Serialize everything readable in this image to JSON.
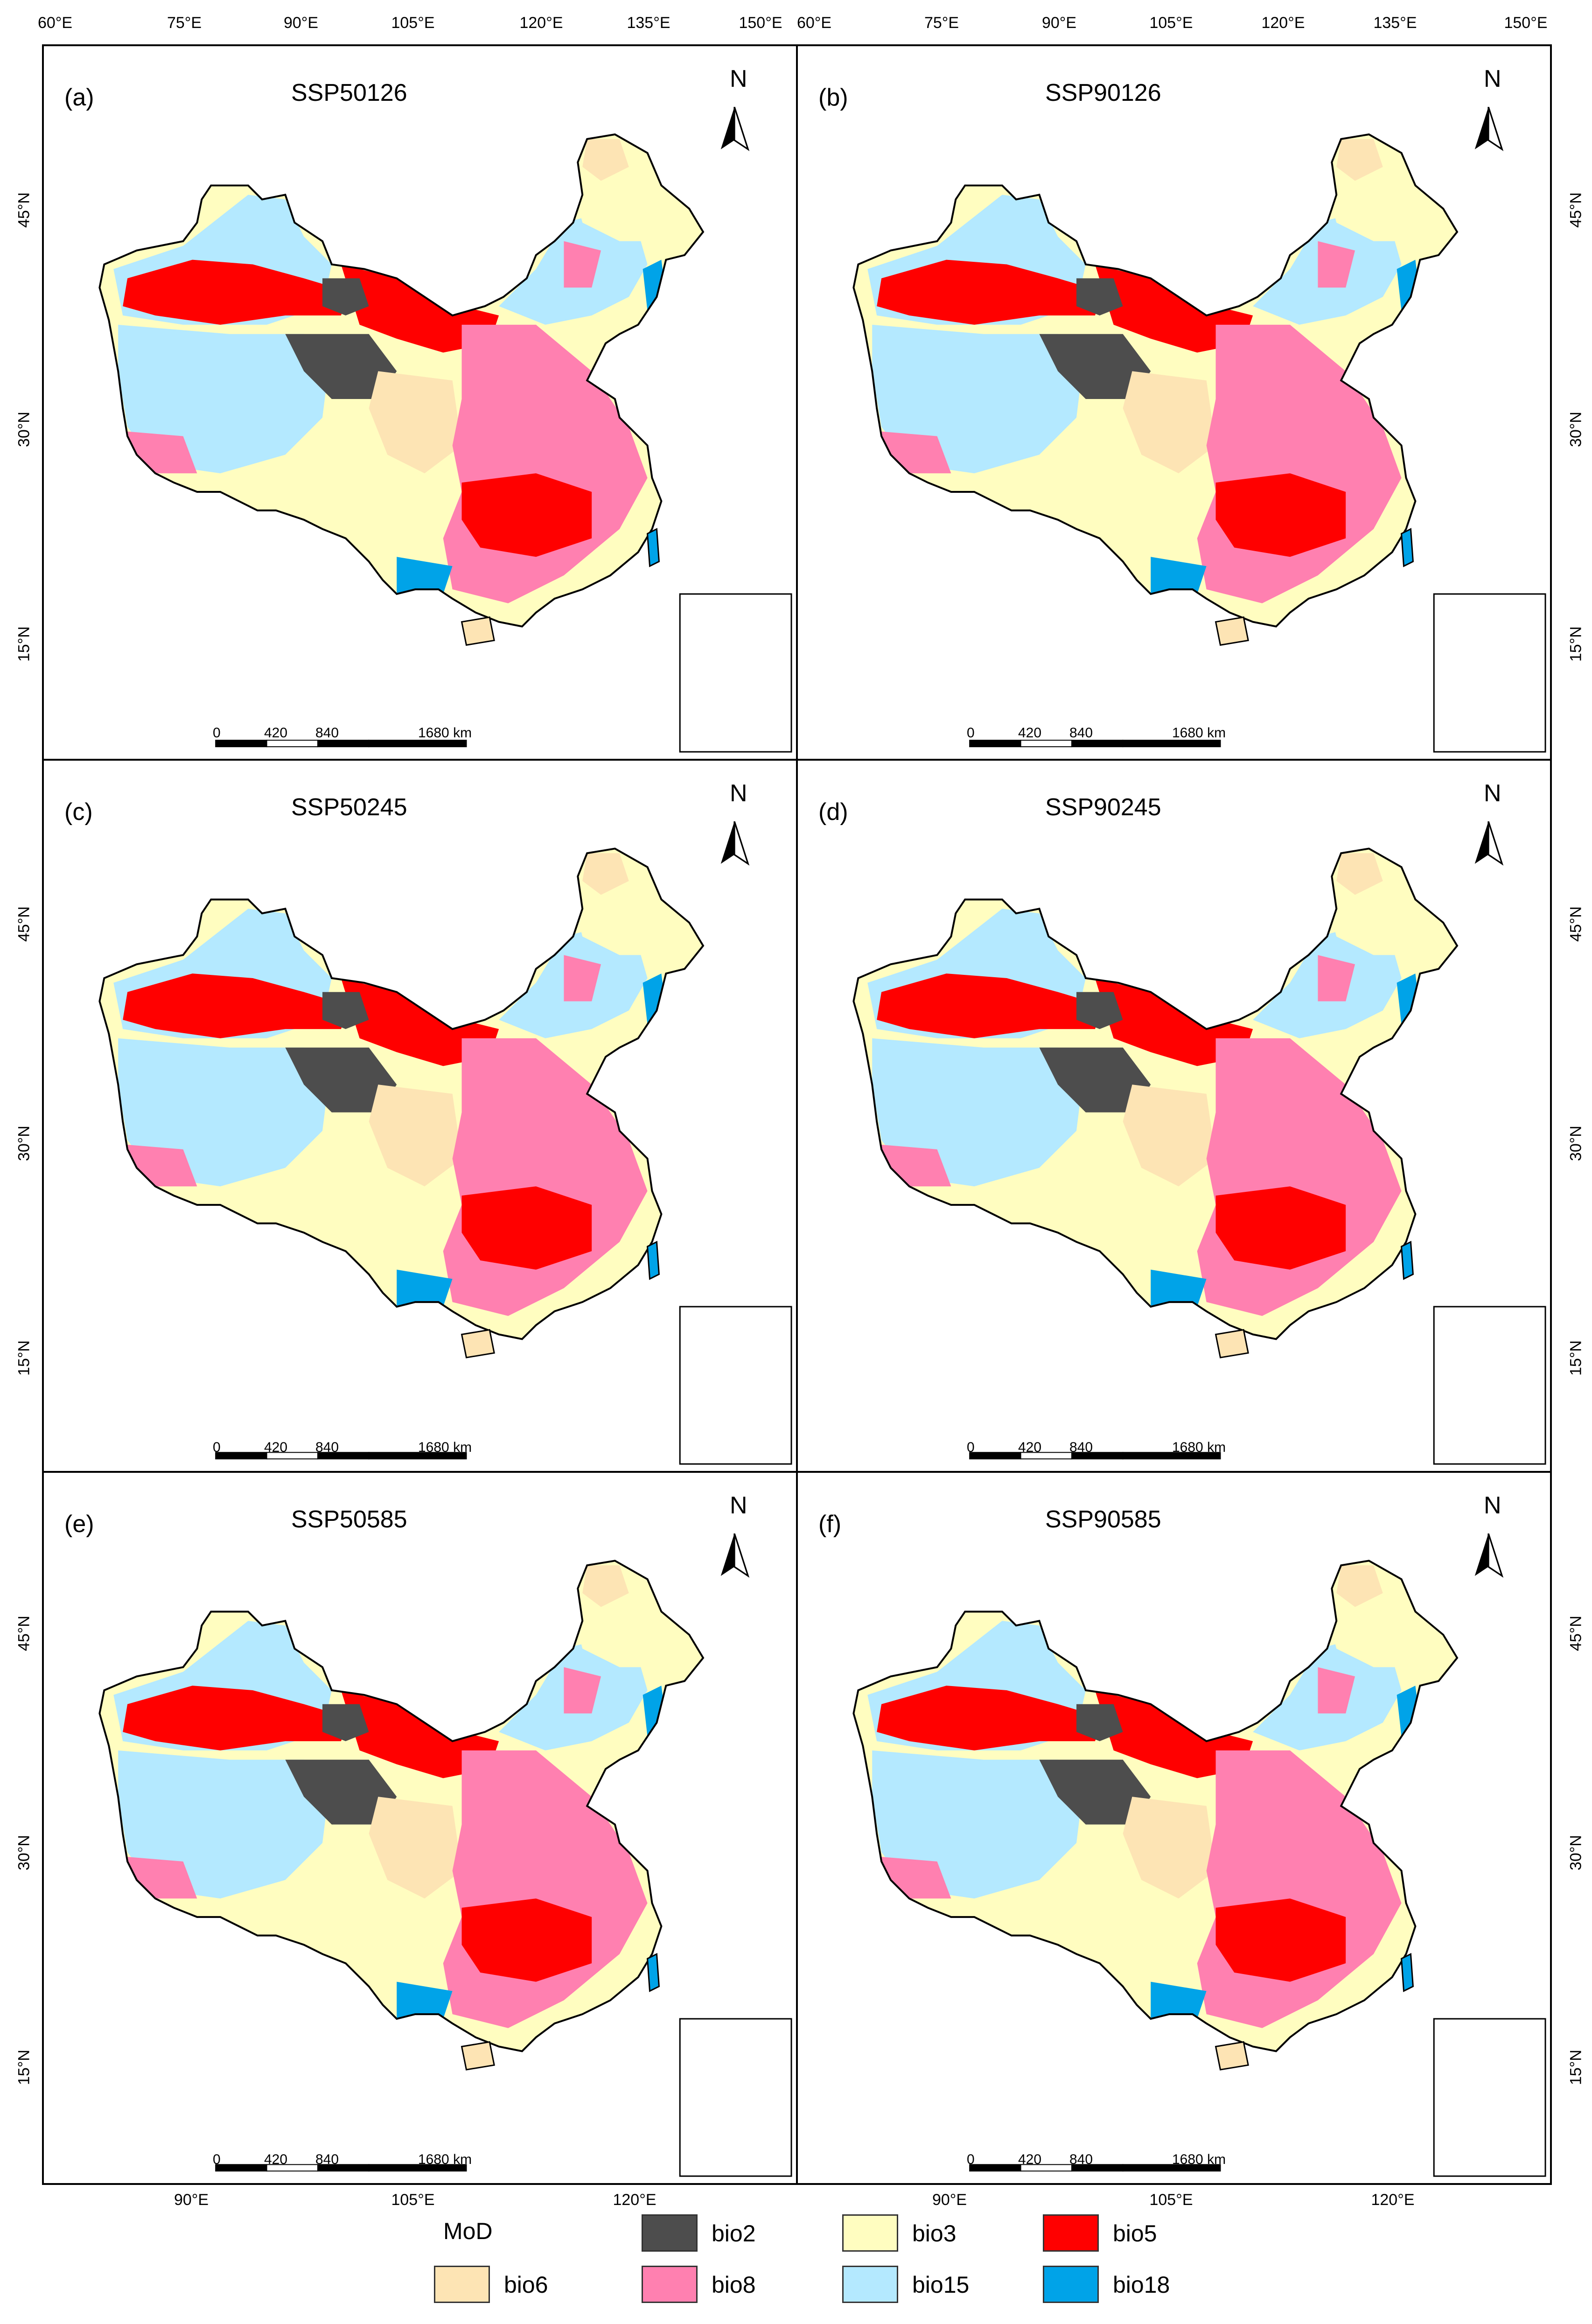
{
  "axes": {
    "top_lon_labels_left": [
      "60°E",
      "75°E",
      "90°E",
      "105°E",
      "120°E",
      "135°E",
      "150°E"
    ],
    "top_lon_labels_right": [
      "60°E",
      "75°E",
      "90°E",
      "105°E",
      "120°E",
      "135°E",
      "150°E"
    ],
    "bottom_lon_labels_left": [
      "90°E",
      "105°E",
      "120°E"
    ],
    "bottom_lon_labels_right": [
      "90°E",
      "105°E",
      "120°E"
    ],
    "lat_labels": [
      "45°N",
      "30°N",
      "15°N"
    ]
  },
  "panels": [
    {
      "label": "(a)",
      "title": "SSP50126"
    },
    {
      "label": "(b)",
      "title": "SSP90126"
    },
    {
      "label": "(c)",
      "title": "SSP50245"
    },
    {
      "label": "(d)",
      "title": "SSP90245"
    },
    {
      "label": "(e)",
      "title": "SSP50585"
    },
    {
      "label": "(f)",
      "title": "SSP90585"
    }
  ],
  "north_arrow": "N",
  "scale_bar": {
    "ticks": [
      "0",
      "420",
      "840",
      "1680 km"
    ]
  },
  "legend": {
    "title": "MoD",
    "items": [
      {
        "label": "bio2",
        "color": "#4d4d4d"
      },
      {
        "label": "bio3",
        "color": "#fffdc0"
      },
      {
        "label": "bio5",
        "color": "#ff0000"
      },
      {
        "label": "bio6",
        "color": "#fde4b4"
      },
      {
        "label": "bio8",
        "color": "#ff80b0"
      },
      {
        "label": "bio15",
        "color": "#b4e9ff"
      },
      {
        "label": "bio18",
        "color": "#00a3e8"
      }
    ]
  }
}
